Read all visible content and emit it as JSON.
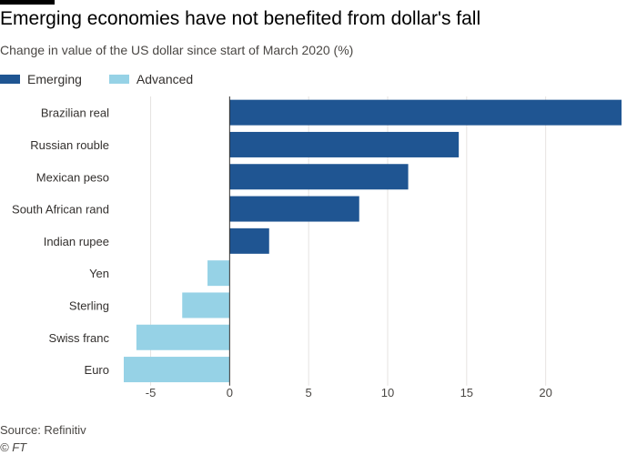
{
  "header": {
    "title": "Emerging economies have not benefited from dollar's fall",
    "subtitle": "Change in value of the US dollar since start of March 2020 (%)"
  },
  "legend": [
    {
      "label": "Emerging",
      "color": "#1f5592"
    },
    {
      "label": "Advanced",
      "color": "#96d2e6"
    }
  ],
  "footer": {
    "source": "Source: Refinitiv",
    "credit": "© FT"
  },
  "chart_data": {
    "type": "bar",
    "orientation": "horizontal",
    "categories": [
      "Brazilian real",
      "Russian rouble",
      "Mexican peso",
      "South African rand",
      "Indian rupee",
      "Yen",
      "Sterling",
      "Swiss franc",
      "Euro"
    ],
    "values": [
      24.8,
      14.5,
      11.3,
      8.2,
      2.5,
      -1.4,
      -3.0,
      -5.9,
      -6.7
    ],
    "groups": [
      "Emerging",
      "Emerging",
      "Emerging",
      "Emerging",
      "Emerging",
      "Advanced",
      "Advanced",
      "Advanced",
      "Advanced"
    ],
    "xticks": [
      -5,
      0,
      5,
      10,
      15,
      20
    ],
    "xlim": [
      -6.7,
      24.8
    ],
    "grid": true,
    "legend_position": "top-left",
    "colors": {
      "Emerging": "#1f5592",
      "Advanced": "#96d2e6",
      "grid": "#e6e3e1",
      "axis": "#33302e"
    }
  }
}
